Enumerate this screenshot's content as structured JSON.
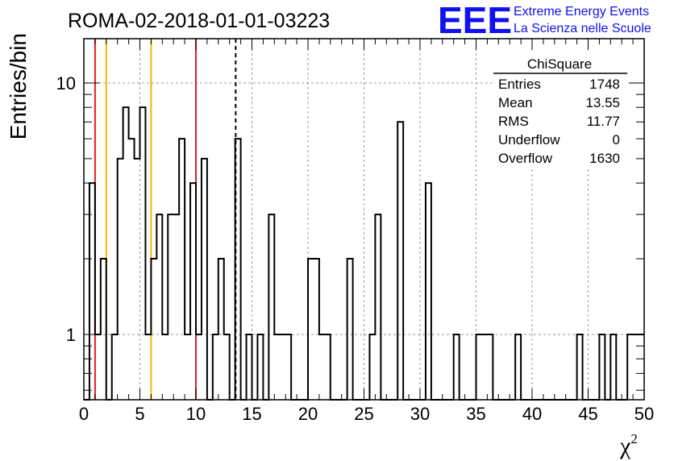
{
  "logo": {
    "mark": "EEE",
    "line1": "Extreme Energy Events",
    "line2": "La Scienza nelle Scuole",
    "color": "#1010f0"
  },
  "chart_data": {
    "type": "bar",
    "title": "ROMA-02-2018-01-01-03223",
    "xlabel": "χ",
    "xlabel_superscript": "2",
    "ylabel": "Entries/bin",
    "xlim": [
      0,
      50
    ],
    "ylim": [
      0.55,
      15
    ],
    "yscale": "log",
    "grid": true,
    "bin_width": 0.5,
    "x_ticks": [
      "0",
      "5",
      "10",
      "15",
      "20",
      "25",
      "30",
      "35",
      "40",
      "45",
      "50"
    ],
    "y_ticks": [
      "1",
      "10"
    ],
    "bins_nonzero": [
      {
        "x": 0.5,
        "y": 4
      },
      {
        "x": 1.0,
        "y": 1
      },
      {
        "x": 1.5,
        "y": 2
      },
      {
        "x": 2.5,
        "y": 1
      },
      {
        "x": 3.0,
        "y": 5
      },
      {
        "x": 3.5,
        "y": 8
      },
      {
        "x": 4.0,
        "y": 6
      },
      {
        "x": 4.5,
        "y": 5
      },
      {
        "x": 5.0,
        "y": 8
      },
      {
        "x": 5.5,
        "y": 1
      },
      {
        "x": 6.0,
        "y": 2
      },
      {
        "x": 6.5,
        "y": 3
      },
      {
        "x": 7.0,
        "y": 1
      },
      {
        "x": 7.5,
        "y": 3
      },
      {
        "x": 8.0,
        "y": 3
      },
      {
        "x": 8.5,
        "y": 6
      },
      {
        "x": 9.0,
        "y": 1
      },
      {
        "x": 9.5,
        "y": 4
      },
      {
        "x": 10.0,
        "y": 1
      },
      {
        "x": 10.5,
        "y": 5
      },
      {
        "x": 11.5,
        "y": 1
      },
      {
        "x": 12.0,
        "y": 2
      },
      {
        "x": 12.5,
        "y": 1
      },
      {
        "x": 13.5,
        "y": 6
      },
      {
        "x": 14.5,
        "y": 1
      },
      {
        "x": 15.5,
        "y": 1
      },
      {
        "x": 16.5,
        "y": 3
      },
      {
        "x": 17.0,
        "y": 1
      },
      {
        "x": 17.5,
        "y": 1
      },
      {
        "x": 18.0,
        "y": 1
      },
      {
        "x": 20.0,
        "y": 2
      },
      {
        "x": 20.5,
        "y": 2
      },
      {
        "x": 21.0,
        "y": 1
      },
      {
        "x": 21.5,
        "y": 1
      },
      {
        "x": 23.5,
        "y": 2
      },
      {
        "x": 25.5,
        "y": 1
      },
      {
        "x": 26.0,
        "y": 3
      },
      {
        "x": 28.0,
        "y": 7
      },
      {
        "x": 30.5,
        "y": 4
      },
      {
        "x": 33.0,
        "y": 1
      },
      {
        "x": 35.0,
        "y": 1
      },
      {
        "x": 35.5,
        "y": 1
      },
      {
        "x": 36.0,
        "y": 1
      },
      {
        "x": 38.5,
        "y": 1
      },
      {
        "x": 44.0,
        "y": 1
      },
      {
        "x": 46.0,
        "y": 1
      },
      {
        "x": 47.0,
        "y": 1
      },
      {
        "x": 48.5,
        "y": 1
      },
      {
        "x": 49.0,
        "y": 1
      },
      {
        "x": 49.5,
        "y": 1
      }
    ],
    "reference_lines": [
      {
        "x": 1.0,
        "color": "#dd2222",
        "style": "solid"
      },
      {
        "x": 2.0,
        "color": "#f0b800",
        "style": "solid"
      },
      {
        "x": 6.0,
        "color": "#f0b800",
        "style": "solid"
      },
      {
        "x": 10.0,
        "color": "#dd2222",
        "style": "solid"
      },
      {
        "x": 13.55,
        "color": "#000000",
        "style": "dashed"
      }
    ],
    "stats": {
      "title": "ChiSquare",
      "rows": [
        {
          "label": "Entries",
          "value": "1748"
        },
        {
          "label": "Mean",
          "value": "13.55"
        },
        {
          "label": "RMS",
          "value": "11.77"
        },
        {
          "label": "Underflow",
          "value": "0"
        },
        {
          "label": "Overflow",
          "value": "1630"
        }
      ]
    }
  }
}
